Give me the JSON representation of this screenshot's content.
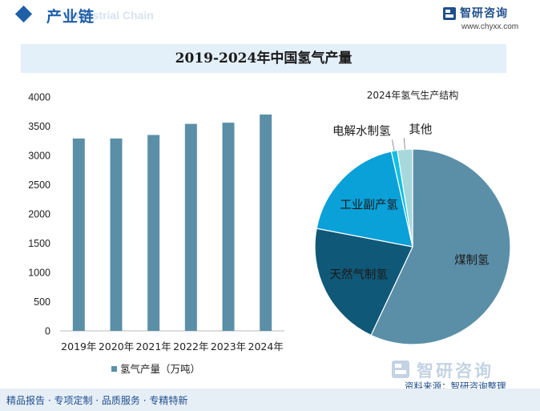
{
  "header": {
    "title": "产业链",
    "ghost_text": "Industrial Chain"
  },
  "brand": {
    "name": "智研咨询",
    "url": "www.chyxx.com"
  },
  "watermark": {
    "name": "智研咨询"
  },
  "footer": {
    "text": "精品报告 · 专项定制 · 品质服务 · 专精特新",
    "source": "资料来源：智研咨询整理"
  },
  "colors": {
    "brand_blue": "#1f5fa8",
    "bar": "#5b8fa8",
    "title_band": "#e3eff9",
    "pie": [
      "#5b8fa8",
      "#105877",
      "#0aa0d8",
      "#12c0e2",
      "#a7d8dc"
    ]
  },
  "chart_data": [
    {
      "type": "bar",
      "title": "2019-2024年中国氢气产量",
      "categories": [
        "2019年",
        "2020年",
        "2021年",
        "2022年",
        "2023年",
        "2024年"
      ],
      "series": [
        {
          "name": "氢气产量（万吨）",
          "values": [
            3290,
            3290,
            3350,
            3540,
            3560,
            3700
          ]
        }
      ],
      "ylim": [
        0,
        4000
      ],
      "yticks": [
        0,
        500,
        1000,
        1500,
        2000,
        2500,
        3000,
        3500,
        4000
      ],
      "grid": false,
      "legend": "bottom"
    },
    {
      "type": "pie",
      "title": "2024年氢气生产结构",
      "labels": [
        "煤制氢",
        "天然气制氢",
        "工业副产氢",
        "电解水制氢",
        "其他"
      ],
      "values": [
        57,
        21,
        18.5,
        1,
        2.5
      ],
      "legend": "none"
    }
  ]
}
